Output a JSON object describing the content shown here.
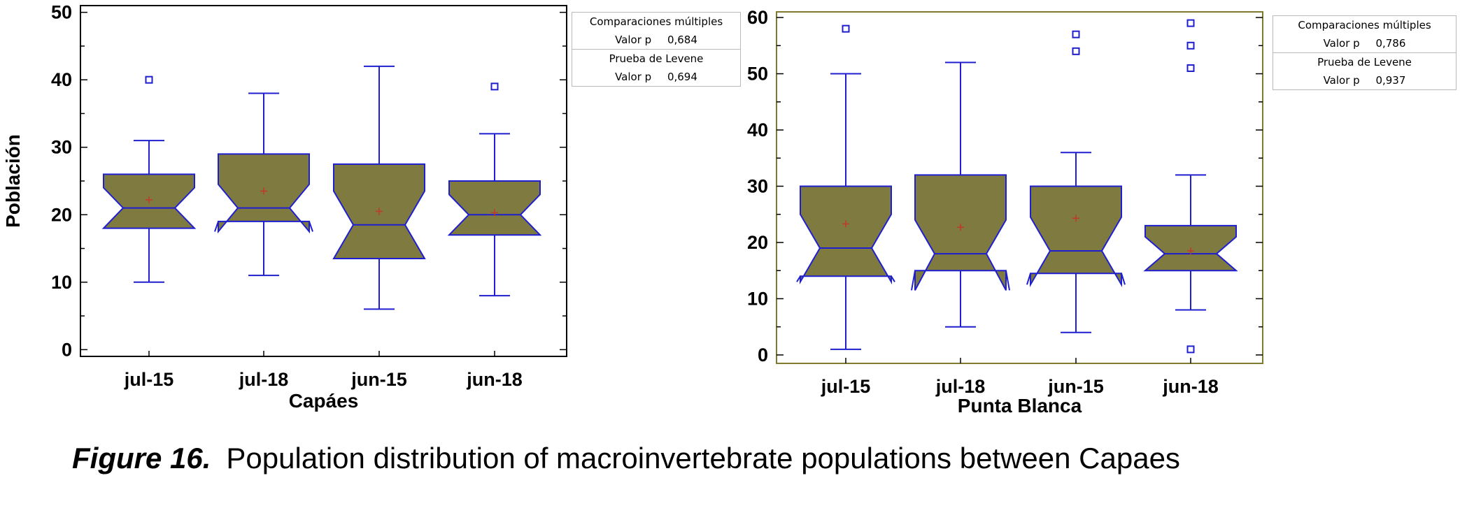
{
  "chart_data": [
    {
      "type": "box",
      "xlabel": "Capáes",
      "ylabel": "Población",
      "categories": [
        "jul-15",
        "jul-18",
        "jun-15",
        "jun-18"
      ],
      "ylim": [
        -1,
        51
      ],
      "yticks": [
        0,
        10,
        20,
        30,
        40,
        50
      ],
      "fill_color": "#7e7a40",
      "line_color": "#1f1fd0",
      "mean_color": "#c0392b",
      "boxes": [
        {
          "whisker_low": 10,
          "q1": 18,
          "median": 21,
          "q3": 26,
          "whisker_high": 31,
          "mean": 22.2,
          "notch_low": 18,
          "notch_high": 24,
          "outliers": [
            40
          ]
        },
        {
          "whisker_low": 11,
          "q1": 19,
          "median": 21,
          "q3": 29,
          "whisker_high": 38,
          "mean": 23.5,
          "notch_low": 17.5,
          "notch_high": 24.5,
          "outliers": []
        },
        {
          "whisker_low": 6,
          "q1": 13.5,
          "median": 18.5,
          "q3": 27.5,
          "whisker_high": 42,
          "mean": 20.5,
          "notch_low": 13.5,
          "notch_high": 23.5,
          "outliers": []
        },
        {
          "whisker_low": 8,
          "q1": 17,
          "median": 20,
          "q3": 25,
          "whisker_high": 32,
          "mean": 20.3,
          "notch_low": 17,
          "notch_high": 23,
          "outliers": [
            39
          ]
        }
      ],
      "stats_box": {
        "row1_title": "Comparaciones múltiples",
        "row1_label": "Valor p",
        "row1_value": "0,684",
        "row2_title": "Prueba de Levene",
        "row2_label": "Valor p",
        "row2_value": "0,694"
      }
    },
    {
      "type": "box",
      "xlabel": "Punta Blanca",
      "ylabel": "",
      "categories": [
        "jul-15",
        "jul-18",
        "jun-15",
        "jun-18"
      ],
      "ylim": [
        -1.5,
        61
      ],
      "yticks": [
        0,
        10,
        20,
        30,
        40,
        50,
        60
      ],
      "fill_color": "#7e7a40",
      "line_color": "#1f1fd0",
      "mean_color": "#c0392b",
      "boxes": [
        {
          "whisker_low": 1,
          "q1": 14,
          "median": 19,
          "q3": 30,
          "whisker_high": 50,
          "mean": 23.3,
          "notch_low": 13,
          "notch_high": 25,
          "outliers": [
            58
          ]
        },
        {
          "whisker_low": 5,
          "q1": 15,
          "median": 18,
          "q3": 32,
          "whisker_high": 52,
          "mean": 22.7,
          "notch_low": 11.5,
          "notch_high": 24,
          "outliers": []
        },
        {
          "whisker_low": 4,
          "q1": 14.5,
          "median": 18.5,
          "q3": 30,
          "whisker_high": 36,
          "mean": 24.3,
          "notch_low": 12.5,
          "notch_high": 24.5,
          "outliers": [
            54,
            57
          ]
        },
        {
          "whisker_low": 8,
          "q1": 15,
          "median": 18,
          "q3": 23,
          "whisker_high": 32,
          "mean": 18.5,
          "notch_low": 15,
          "notch_high": 21,
          "outliers": [
            1,
            51,
            55,
            59
          ]
        }
      ],
      "stats_box": {
        "row1_title": "Comparaciones múltiples",
        "row1_label": "Valor p",
        "row1_value": "0,786",
        "row2_title": "Prueba de Levene",
        "row2_label": "Valor p",
        "row2_value": "0,937"
      }
    }
  ],
  "caption": {
    "figure_number": "Figure 16.",
    "text": "Population distribution of macroinvertebrate populations between Capaes"
  }
}
